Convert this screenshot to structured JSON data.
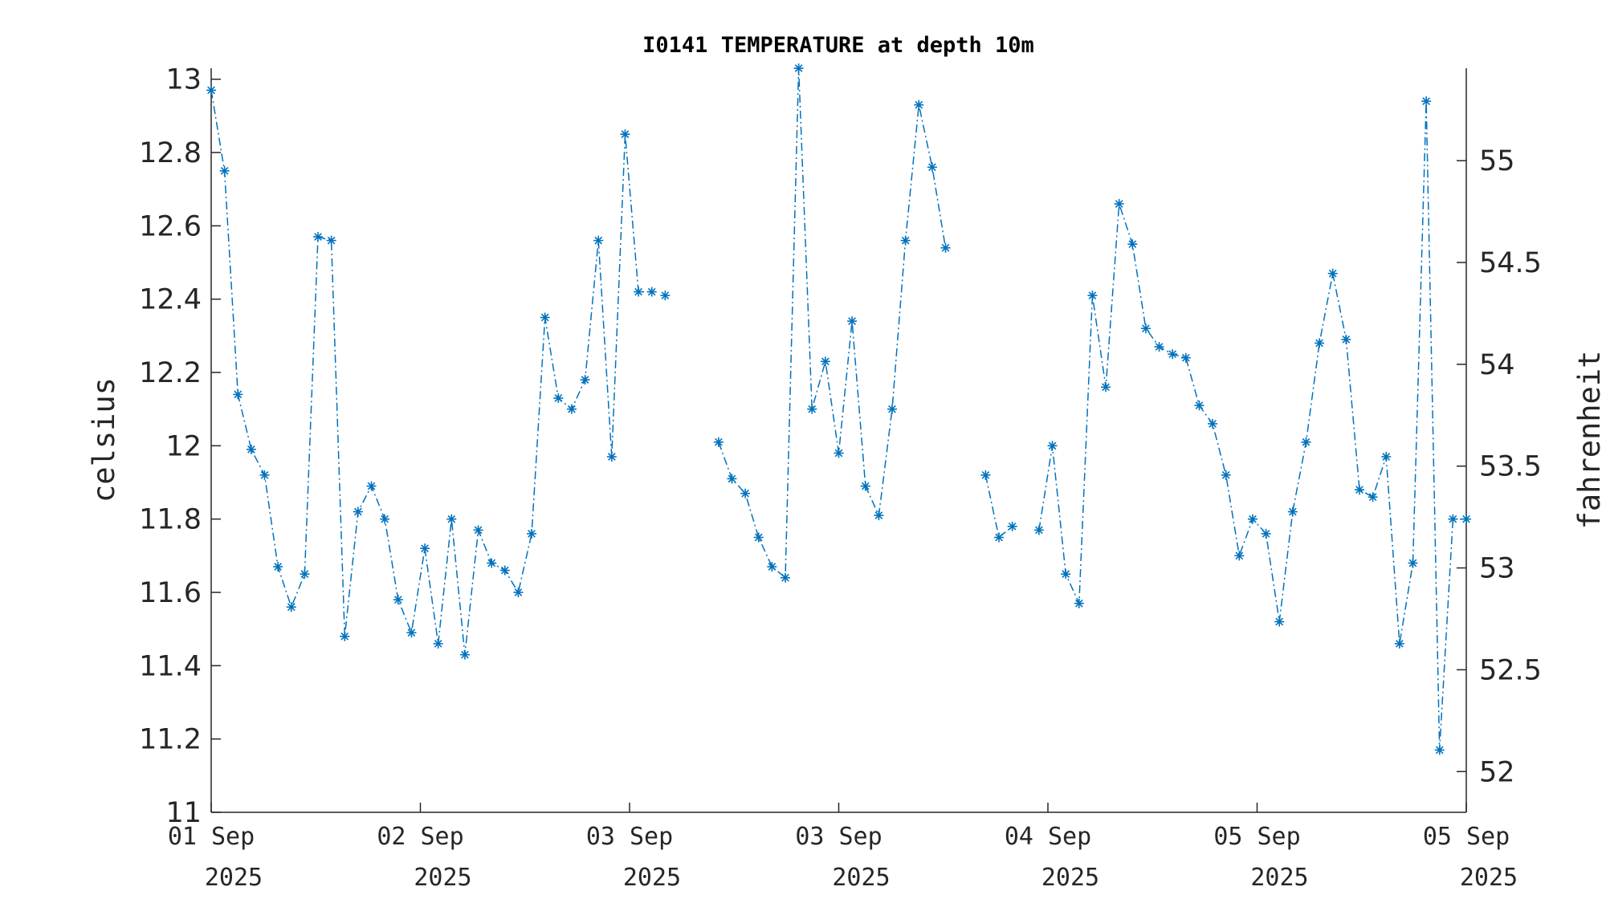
{
  "chart_data": {
    "type": "line",
    "title": "I0141 TEMPERATURE at depth 10m",
    "ylabel": "celsius",
    "ylabel_right": "fahrenheit",
    "ylim": [
      11,
      13.03
    ],
    "yticks": [
      "11",
      "11.2",
      "11.4",
      "11.6",
      "11.8",
      "12",
      "12.2",
      "12.4",
      "12.6",
      "12.8",
      "13"
    ],
    "yticks_right": [
      "52",
      "52.5",
      "53",
      "53.5",
      "54",
      "54.5",
      "55"
    ],
    "xlim": [
      0,
      6
    ],
    "xticks": [
      {
        "line1": "01 Sep",
        "line2": "2025"
      },
      {
        "line1": "02 Sep",
        "line2": "2025"
      },
      {
        "line1": "03 Sep",
        "line2": "2025"
      },
      {
        "line1": "03 Sep",
        "line2": "2025"
      },
      {
        "line1": "04 Sep",
        "line2": "2025"
      },
      {
        "line1": "05 Sep",
        "line2": "2025"
      },
      {
        "line1": "05 Sep",
        "line2": "2025"
      }
    ],
    "marker": "asterisk",
    "line_style": "dash-dot",
    "color": "#0072BD",
    "grid": false,
    "segments": [
      [
        12.97,
        12.75,
        12.14,
        11.99,
        11.92,
        11.67,
        11.56,
        11.65,
        12.57,
        12.56,
        11.48,
        11.82,
        11.89,
        11.8,
        11.58,
        11.49,
        11.72,
        11.46,
        11.8,
        11.43,
        11.77,
        11.68,
        11.66,
        11.6,
        11.76,
        12.35,
        12.13,
        12.1,
        12.18,
        12.56,
        11.97,
        12.85,
        12.42,
        12.42
      ],
      [
        12.41
      ],
      [
        12.01,
        11.91,
        11.87,
        11.75,
        11.67,
        11.64,
        13.03,
        12.1,
        12.23,
        11.98,
        12.34,
        11.89,
        11.81,
        12.1,
        12.56,
        12.93,
        12.76,
        12.54
      ],
      [
        11.92,
        11.75,
        11.78
      ],
      [
        11.77,
        12.0,
        11.65,
        11.57,
        12.41,
        12.16,
        12.66,
        12.55,
        12.32,
        12.27,
        12.25,
        12.24,
        12.11,
        12.06,
        11.92,
        11.7,
        11.8,
        11.76,
        11.52,
        11.82,
        12.01,
        12.28,
        12.47,
        12.29,
        11.88,
        11.86,
        11.97,
        11.46,
        11.68,
        12.94,
        11.17,
        11.8,
        11.8
      ]
    ]
  }
}
